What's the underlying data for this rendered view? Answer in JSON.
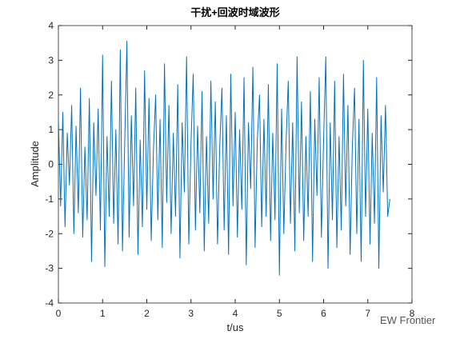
{
  "chart_data": {
    "type": "line",
    "title": "干扰+回波时域波形",
    "x_label": "t/us",
    "y_label": "Amplitude",
    "watermark": "EW Frontier",
    "xlim": [
      0,
      8
    ],
    "ylim": [
      -4,
      4
    ],
    "xticks": [
      0,
      1,
      2,
      3,
      4,
      5,
      6,
      7,
      8
    ],
    "yticks": [
      -4,
      -3,
      -2,
      -1,
      0,
      1,
      2,
      3,
      4
    ],
    "grid": false,
    "x": [
      0,
      0.05,
      0.1,
      0.15,
      0.2,
      0.25,
      0.3,
      0.35,
      0.4,
      0.45,
      0.5,
      0.55,
      0.6,
      0.65,
      0.7,
      0.75,
      0.8,
      0.85,
      0.9,
      0.95,
      1,
      1.05,
      1.1,
      1.15,
      1.2,
      1.25,
      1.3,
      1.35,
      1.4,
      1.45,
      1.5,
      1.55,
      1.6,
      1.65,
      1.7,
      1.75,
      1.8,
      1.85,
      1.9,
      1.95,
      2,
      2.05,
      2.1,
      2.15,
      2.2,
      2.25,
      2.3,
      2.35,
      2.4,
      2.45,
      2.5,
      2.55,
      2.6,
      2.65,
      2.7,
      2.75,
      2.8,
      2.85,
      2.9,
      2.95,
      3,
      3.05,
      3.1,
      3.15,
      3.2,
      3.25,
      3.3,
      3.35,
      3.4,
      3.45,
      3.5,
      3.55,
      3.6,
      3.65,
      3.7,
      3.75,
      3.8,
      3.85,
      3.9,
      3.95,
      4,
      4.05,
      4.1,
      4.15,
      4.2,
      4.25,
      4.3,
      4.35,
      4.4,
      4.45,
      4.5,
      4.55,
      4.6,
      4.65,
      4.7,
      4.75,
      4.8,
      4.85,
      4.9,
      4.95,
      5,
      5.05,
      5.1,
      5.15,
      5.2,
      5.25,
      5.3,
      5.35,
      5.4,
      5.45,
      5.5,
      5.55,
      5.6,
      5.65,
      5.7,
      5.75,
      5.8,
      5.85,
      5.9,
      5.95,
      6,
      6.05,
      6.1,
      6.15,
      6.2,
      6.25,
      6.3,
      6.35,
      6.4,
      6.45,
      6.5,
      6.55,
      6.6,
      6.65,
      6.7,
      6.75,
      6.8,
      6.85,
      6.9,
      6.95,
      7,
      7.05,
      7.1,
      7.15,
      7.2,
      7.25,
      7.3,
      7.35,
      7.4,
      7.45,
      7.5
    ],
    "series": [
      {
        "color": "#0072bd",
        "values": [
          1.3,
          -1.2,
          1.5,
          -1.8,
          0.9,
          -0.6,
          1.7,
          -2.0,
          1.1,
          -1.4,
          2.2,
          -2.1,
          0.5,
          -1.6,
          1.9,
          -2.8,
          1.2,
          -0.9,
          1.6,
          -1.9,
          3.15,
          -2.95,
          0.8,
          -1.5,
          2.4,
          -1.7,
          1.0,
          -2.3,
          3.3,
          -2.5,
          0.6,
          3.55,
          -2.1,
          1.4,
          -1.2,
          2.2,
          -2.6,
          0.7,
          -1.8,
          2.7,
          -1.3,
          1.9,
          -2.2,
          0.4,
          2.0,
          -1.6,
          1.3,
          -2.4,
          2.9,
          -1.1,
          1.7,
          -2.0,
          0.9,
          -1.5,
          2.3,
          -2.7,
          1.2,
          -0.8,
          3.1,
          -2.3,
          0.6,
          2.6,
          -1.9,
          1.1,
          -1.4,
          2.1,
          -2.5,
          0.8,
          -1.7,
          2.4,
          -1.0,
          1.8,
          -2.3,
          0.5,
          2.2,
          -1.9,
          1.4,
          -2.6,
          2.6,
          -1.2,
          1.5,
          -2.1,
          1.0,
          -1.3,
          2.5,
          -2.9,
          1.2,
          -0.7,
          2.8,
          -2.4,
          0.7,
          2.0,
          -1.8,
          1.3,
          -1.5,
          2.3,
          -2.2,
          0.9,
          -1.6,
          2.9,
          -3.2,
          1.6,
          -2.0,
          0.6,
          2.4,
          -1.7,
          1.2,
          -2.5,
          3.1,
          -1.4,
          1.8,
          -2.2,
          0.8,
          -1.5,
          2.1,
          -2.8,
          1.3,
          -0.9,
          2.5,
          -2.1,
          0.7,
          3.1,
          -3.0,
          1.2,
          -1.6,
          2.4,
          -2.4,
          0.8,
          -1.9,
          2.6,
          -1.2,
          1.7,
          -2.6,
          0.5,
          2.2,
          -2.0,
          1.3,
          -2.8,
          3.0,
          -1.5,
          1.6,
          -2.3,
          0.9,
          -1.7,
          2.5,
          -3.0,
          1.4,
          -0.8,
          1.7,
          -1.5,
          -1.0
        ]
      }
    ]
  }
}
